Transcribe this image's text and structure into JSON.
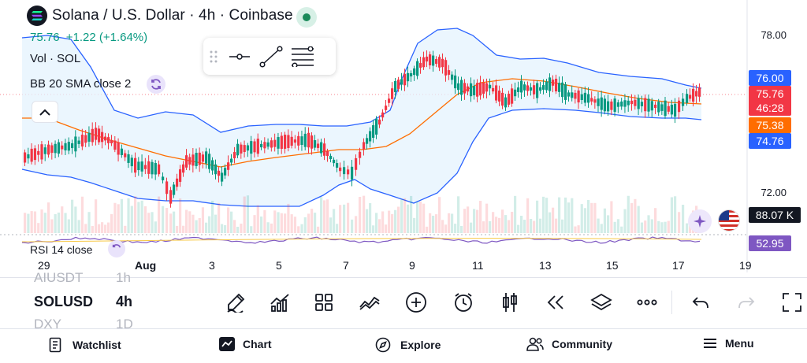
{
  "header": {
    "title": "Solana / U.S. Dollar · 4h · Coinbase",
    "price": "75.76",
    "change": "+1.22 (+1.64%)",
    "volume_label": "Vol · SOL",
    "bb_label": "BB 20 SMA close 2",
    "rsi_label": "RSI 14 close"
  },
  "price_axis": {
    "labels": [
      "78.00",
      "72.00"
    ]
  },
  "price_tags": {
    "bb_upper": "76.00",
    "last_price": "75.76",
    "countdown": "46:28",
    "bb_basis": "75.38",
    "bb_lower": "74.76",
    "volume": "88.07 K",
    "rsi": "52.95"
  },
  "date_axis": [
    "29",
    "Aug",
    "3",
    "5",
    "7",
    "9",
    "11",
    "13",
    "15",
    "17",
    "19"
  ],
  "symbols": [
    {
      "symbol": "AIUSDT",
      "interval": "1h"
    },
    {
      "symbol": "SOLUSD",
      "interval": "4h"
    },
    {
      "symbol": "DXY",
      "interval": "1D"
    }
  ],
  "toolbar_icons": [
    "brush-icon",
    "indicators-icon",
    "layout-icon",
    "compare-icon",
    "add-icon",
    "alert-icon",
    "candle-type-icon",
    "replay-icon",
    "layers-icon",
    "more-icon",
    "undo-icon",
    "redo-icon",
    "fullscreen-icon"
  ],
  "bottom_nav": {
    "watchlist": "Watchlist",
    "chart": "Chart",
    "explore": "Explore",
    "community": "Community",
    "menu": "Menu"
  },
  "colors": {
    "up": "#089981",
    "down": "#f23645",
    "bb_band": "#2962ff",
    "bb_basis": "#ff6d00",
    "rsi": "#7e57c2",
    "band_fill": "#e3f2fd",
    "tag_blue": "#2962ff",
    "tag_red": "#f23645",
    "tag_orange": "#ff6d00",
    "tag_dark": "#131722",
    "tag_purple": "#7e57c2"
  }
}
